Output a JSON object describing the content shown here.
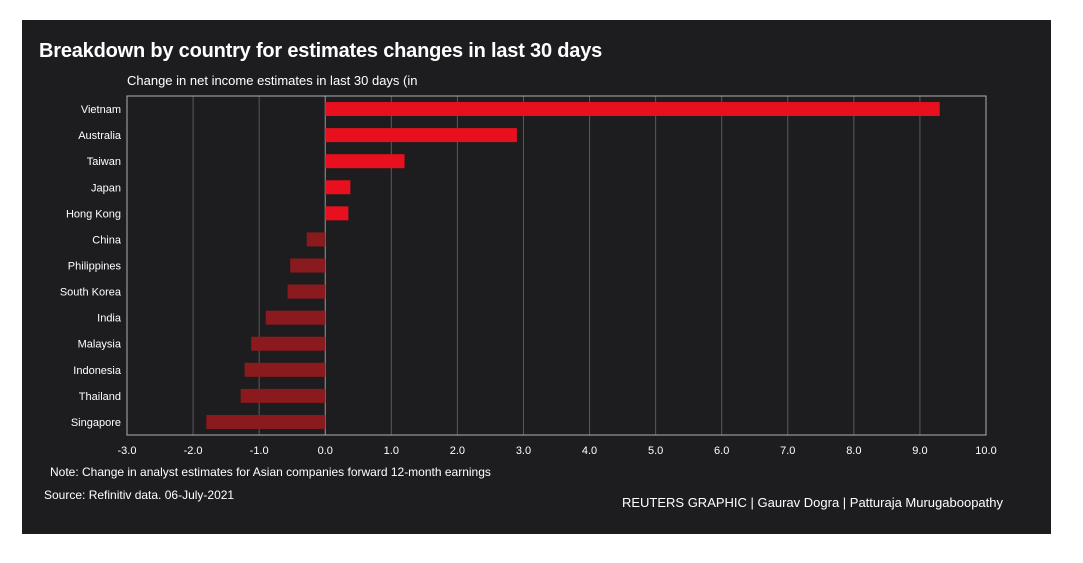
{
  "title": "Breakdown by country for estimates changes in last 30 days",
  "subtitle": "Change in net income estimates in last 30 days (in",
  "note": "Note: Change in analyst estimates for Asian companies forward 12-month earnings",
  "source": "Source: Refinitiv data. 06-July-2021",
  "credit": "REUTERS GRAPHIC | Gaurav Dogra | Patturaja Murugaboopathy",
  "colors": {
    "background": "#1d1d1f",
    "positive_bar": "#e8101e",
    "negative_bar": "#8b1a1f",
    "gridline": "#5a5a5a",
    "frame": "#b0b0b0"
  },
  "chart_data": {
    "type": "bar",
    "orientation": "horizontal",
    "categories": [
      "Vietnam",
      "Australia",
      "Taiwan",
      "Japan",
      "Hong Kong",
      "China",
      "Philippines",
      "South Korea",
      "India",
      "Malaysia",
      "Indonesia",
      "Thailand",
      "Singapore"
    ],
    "values": [
      9.3,
      2.9,
      1.2,
      0.38,
      0.35,
      -0.28,
      -0.53,
      -0.57,
      -0.9,
      -1.12,
      -1.22,
      -1.28,
      -1.8
    ],
    "xlim": [
      -3.0,
      10.0
    ],
    "xticks": [
      "-3.0",
      "-2.0",
      "-1.0",
      "0.0",
      "1.0",
      "2.0",
      "3.0",
      "4.0",
      "5.0",
      "6.0",
      "7.0",
      "8.0",
      "9.0",
      "10.0"
    ],
    "xtick_values": [
      -3,
      -2,
      -1,
      0,
      1,
      2,
      3,
      4,
      5,
      6,
      7,
      8,
      9,
      10
    ],
    "grid": true,
    "legend": false
  }
}
